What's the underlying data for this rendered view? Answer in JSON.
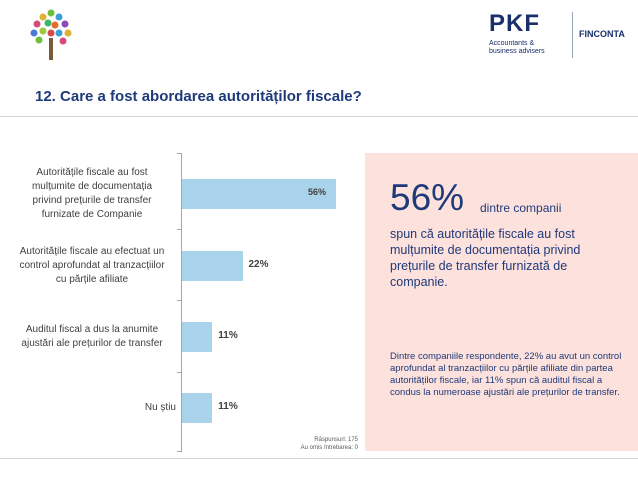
{
  "header": {
    "brand": "PKF",
    "brand_sub_line1": "Accountants &",
    "brand_sub_line2": "business advisers",
    "partner": "FINCONTA"
  },
  "title": "12. Care a fost abordarea autorităților fiscale?",
  "chart_data": {
    "type": "bar",
    "orientation": "horizontal",
    "categories": [
      "Autoritățile fiscale au fost mulțumite de documentația privind prețurile de transfer furnizate de Companie",
      "Autoritățile fiscale au efectuat un control aprofundat al tranzacțiilor cu părțile afiliate",
      "Auditul fiscal a dus la anumite ajustări ale prețurilor de transfer",
      "Nu știu"
    ],
    "category_lines": [
      [
        "Autoritățile fiscale au fost",
        "mulțumite de documentația",
        "privind prețurile de transfer",
        "furnizate de Companie"
      ],
      [
        "Autoritățile fiscale au efectuat un",
        "control aprofundat al tranzacțiilor",
        "cu părțile afiliate"
      ],
      [
        "Auditul fiscal a dus la anumite",
        "ajustări ale prețurilor de transfer"
      ],
      [
        "Nu știu"
      ]
    ],
    "values": [
      56,
      22,
      11,
      11
    ],
    "value_labels": [
      "56%",
      "22%",
      "11%",
      "11%"
    ],
    "xlim": [
      0,
      60
    ],
    "bar_color": "#a9d3ea",
    "grid": false,
    "legend": "none"
  },
  "notes": {
    "line1": "Răspunsuri: 175",
    "line2": "Au omis întrebarea: 0"
  },
  "highlight": {
    "percent": "56%",
    "tail": "dintre companii",
    "text": "spun că autoritățile fiscale au fost mulțumite de documentația privind prețurile de transfer furnizată de companie.",
    "detail": "Dintre companiile respondente, 22% au avut un control aprofundat al tranzacțiilor cu părțile afiliate din partea autorităților fiscale, iar 11% spun că auditul fiscal a condus la numeroase ajustări ale prețurilor de transfer."
  },
  "colors": {
    "title": "#1f3a7a",
    "panel": "#fce1dc",
    "bar": "#a9d3ea"
  }
}
